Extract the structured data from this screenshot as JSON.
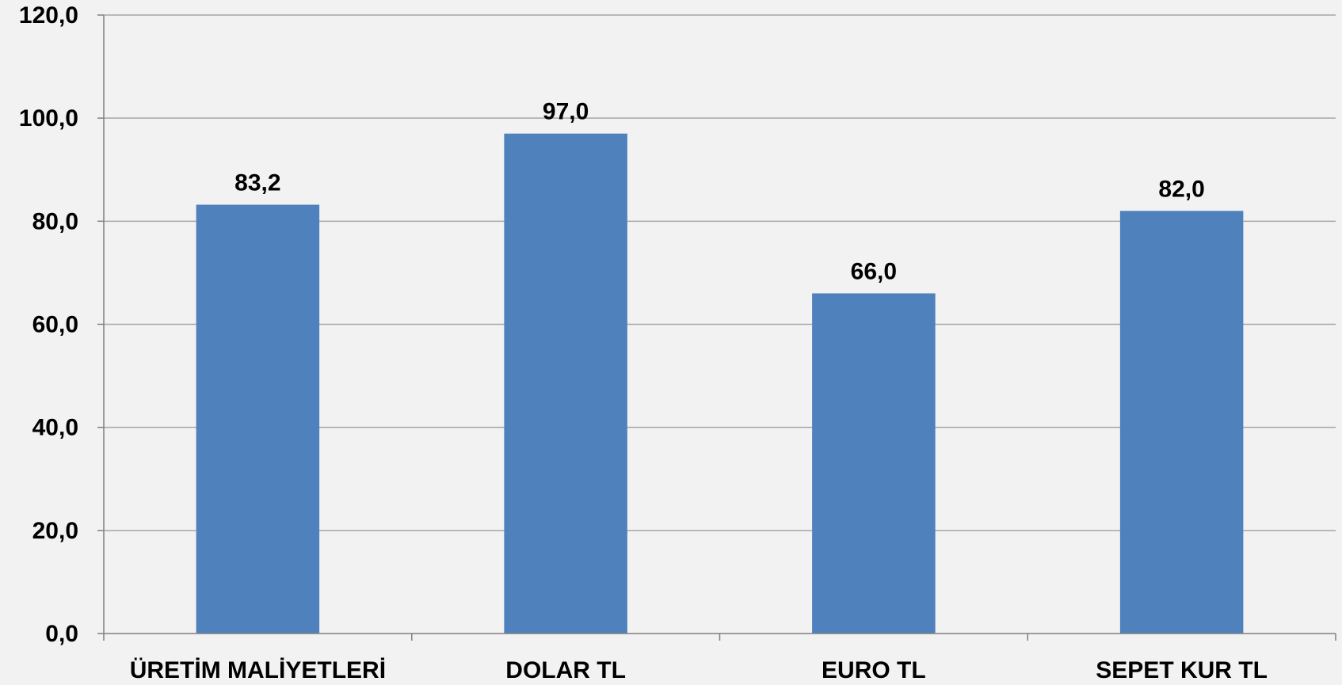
{
  "chart_data": {
    "type": "bar",
    "categories": [
      "ÜRETİM MALİYETLERİ",
      "DOLAR TL",
      "EURO TL",
      "SEPET KUR TL"
    ],
    "values": [
      83.2,
      97.0,
      66.0,
      82.0
    ],
    "data_labels": [
      "83,2",
      "97,0",
      "66,0",
      "82,0"
    ],
    "ylim": [
      0,
      120
    ],
    "yticks": [
      0,
      20,
      40,
      60,
      80,
      100,
      120
    ],
    "ytick_labels": [
      "0,0",
      "20,0",
      "40,0",
      "60,0",
      "80,0",
      "100,0",
      "120,0"
    ],
    "title": "",
    "xlabel": "",
    "ylabel": "",
    "grid": true,
    "legend": "none",
    "colors": {
      "bar": "#4f81bd",
      "grid": "#a6a6a6",
      "axis": "#808080",
      "background": "#f2f2f2"
    }
  }
}
